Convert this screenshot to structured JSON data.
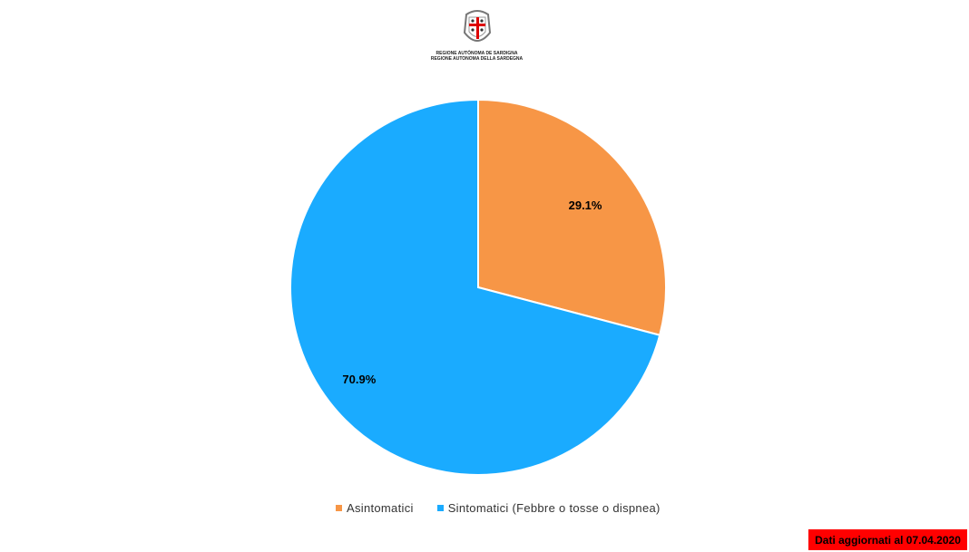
{
  "logo": {
    "line1": "REGIONE AUTÒNOMA DE SARDIGNA",
    "line2": "REGIONE AUTONOMA DELLA SARDEGNA"
  },
  "chart_data": {
    "type": "pie",
    "categories": [
      "Asintomatici",
      "Sintomatici (Febbre o tosse o dispnea)"
    ],
    "values": [
      29.1,
      70.9
    ],
    "labels": [
      "29.1%",
      "70.9%"
    ],
    "colors": [
      "#f79646",
      "#1aabff"
    ],
    "legend_position": "bottom"
  },
  "footer": {
    "date_note": "Dati aggiornati al 07.04.2020",
    "date_note_color": "#ff0000"
  }
}
